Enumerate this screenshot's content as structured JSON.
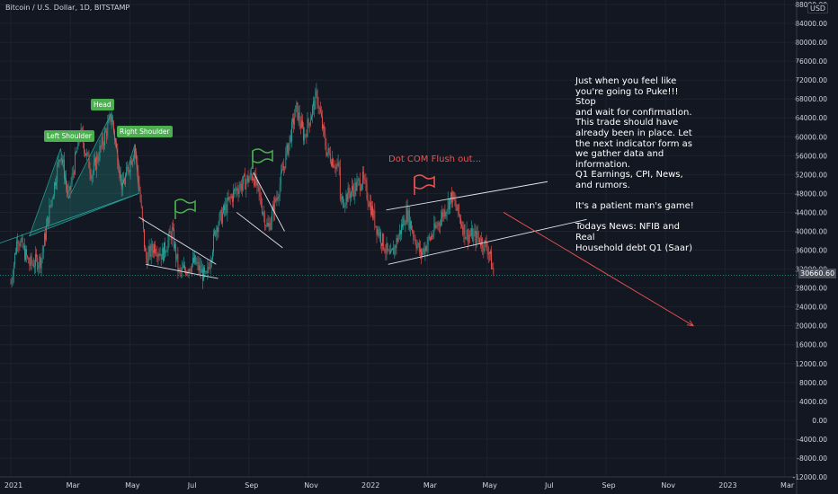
{
  "header": {
    "symbol_title": "Bitcoin / U.S. Dollar, 1D, BITSTAMP",
    "currency": "USD"
  },
  "price_tag": "30660.60",
  "annotations": {
    "note_text": "Just when you feel like\nyou're going to Puke!!! Stop\nand wait for confirmation.\nThis trade should have\nalready been in place. Let\nthe next indicator form as\nwe gather data and\ninformation.\nQ1 Earnings, CPI, News,\nand rumors.\n\nIt's a patient man's game!\n\nTodays News: NFIB and Real\nHousehold debt Q1 (Saar)",
    "dot_com": "Dot COM Flush out...",
    "left_shoulder": "Left Shoulder",
    "head": "Head",
    "right_shoulder": "Right Shoulder"
  },
  "colors": {
    "background": "#131722",
    "grid": "#1e222d",
    "up": "#26a69a",
    "down": "#ef5350",
    "pattern_fill": "#26a69a",
    "label_green": "#4caf50",
    "text": "#d1d4dc"
  },
  "chart_data": {
    "type": "candlestick",
    "title": "Bitcoin / U.S. Dollar, 1D, BITSTAMP",
    "y_tick_labels": [
      "88000.00",
      "84000.00",
      "80000.00",
      "76000.00",
      "72000.00",
      "68000.00",
      "64000.00",
      "60000.00",
      "56000.00",
      "52000.00",
      "48000.00",
      "44000.00",
      "40000.00",
      "36000.00",
      "32000.00",
      "28000.00",
      "24000.00",
      "20000.00",
      "16000.00",
      "12000.00",
      "8000.00",
      "4000.00",
      "0.00",
      "-4000.00",
      "-8000.00",
      "-12000.00"
    ],
    "x_tick_labels": [
      "2021",
      "Mar",
      "May",
      "Jul",
      "Sep",
      "Nov",
      "2022",
      "Mar",
      "May",
      "Jul",
      "Sep",
      "Nov",
      "2023",
      "Mar"
    ],
    "ylim": [
      -12000,
      88000
    ],
    "last_price": 30660.6,
    "price_path": [
      [
        "2021-01-01",
        29000
      ],
      [
        "2021-01-08",
        39000
      ],
      [
        "2021-01-20",
        33000
      ],
      [
        "2021-02-01",
        34000
      ],
      [
        "2021-02-10",
        45000
      ],
      [
        "2021-02-21",
        57000
      ],
      [
        "2021-03-01",
        47000
      ],
      [
        "2021-03-13",
        61000
      ],
      [
        "2021-03-25",
        52000
      ],
      [
        "2021-04-14",
        64500
      ],
      [
        "2021-04-25",
        49000
      ],
      [
        "2021-05-08",
        58000
      ],
      [
        "2021-05-12",
        50000
      ],
      [
        "2021-05-19",
        34000
      ],
      [
        "2021-05-28",
        37000
      ],
      [
        "2021-06-05",
        35000
      ],
      [
        "2021-06-15",
        40000
      ],
      [
        "2021-06-22",
        31000
      ],
      [
        "2021-07-08",
        33500
      ],
      [
        "2021-07-20",
        29800
      ],
      [
        "2021-07-30",
        41000
      ],
      [
        "2021-08-14",
        47000
      ],
      [
        "2021-08-20",
        49000
      ],
      [
        "2021-09-06",
        52000
      ],
      [
        "2021-09-21",
        40500
      ],
      [
        "2021-10-01",
        48000
      ],
      [
        "2021-10-20",
        66000
      ],
      [
        "2021-10-28",
        60000
      ],
      [
        "2021-11-10",
        68800
      ],
      [
        "2021-11-20",
        57000
      ],
      [
        "2021-12-03",
        53000
      ],
      [
        "2021-12-04",
        46000
      ],
      [
        "2021-12-27",
        51000
      ],
      [
        "2022-01-10",
        41000
      ],
      [
        "2022-01-24",
        34000
      ],
      [
        "2022-02-10",
        44000
      ],
      [
        "2022-02-24",
        35000
      ],
      [
        "2022-03-10",
        40000
      ],
      [
        "2022-03-28",
        47500
      ],
      [
        "2022-04-11",
        39500
      ],
      [
        "2022-04-25",
        38500
      ],
      [
        "2022-05-05",
        36000
      ],
      [
        "2022-05-10",
        30660
      ]
    ],
    "drawings": {
      "head_and_shoulders": [
        "Left Shoulder",
        "Head",
        "Right Shoulder"
      ],
      "channel_label": "Dot COM Flush out...",
      "projection_target": 20000
    },
    "grid": true
  }
}
